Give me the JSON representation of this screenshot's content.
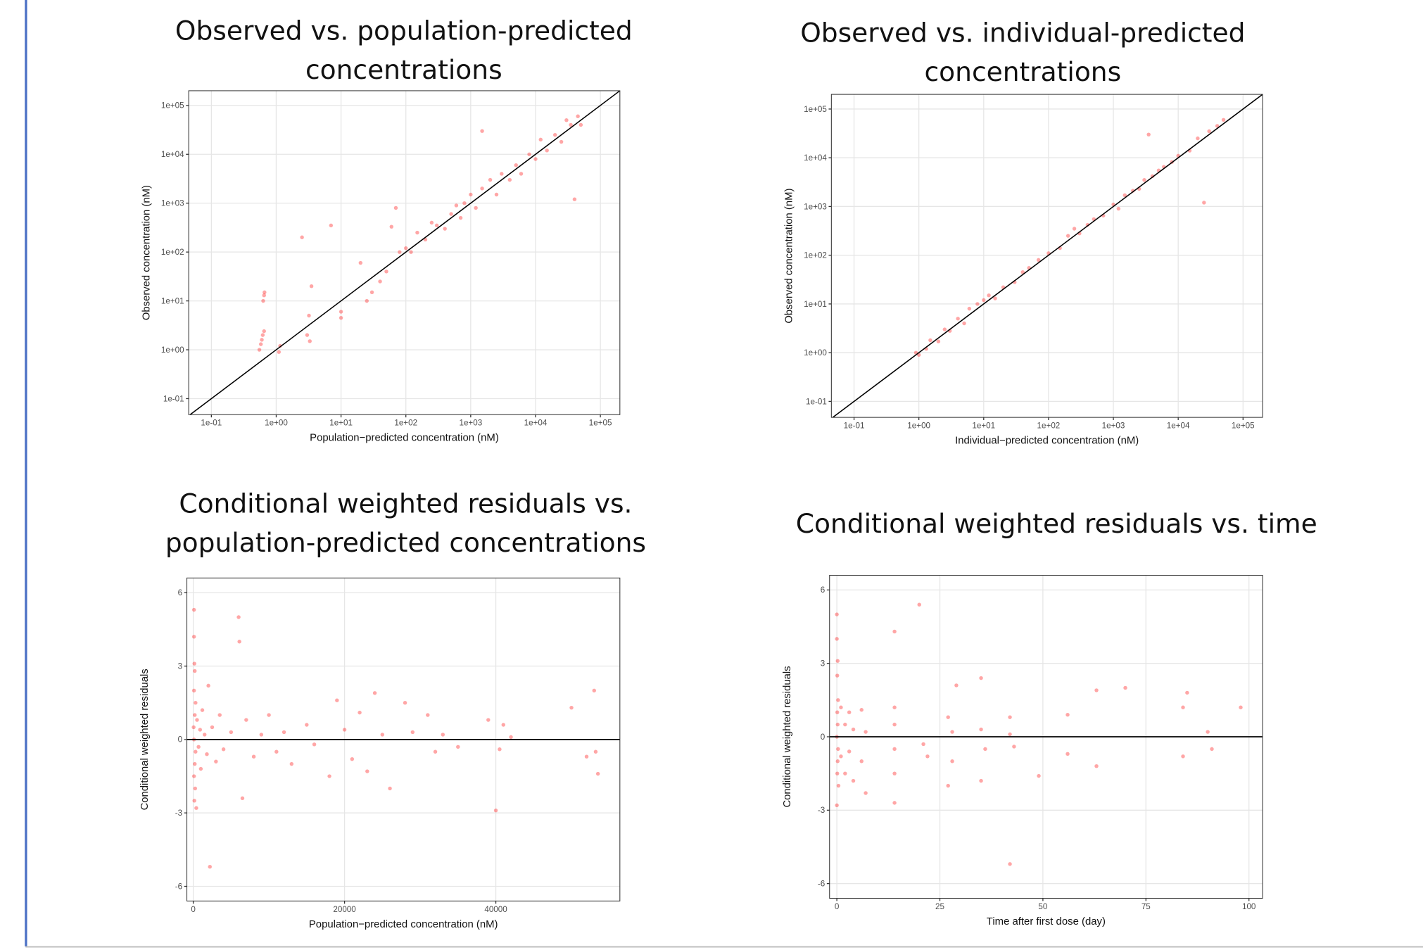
{
  "chart_data": [
    {
      "type": "scatter",
      "title": [
        "Observed vs. population-predicted",
        "concentrations"
      ],
      "x_label": "Population−predicted concentration (nM)",
      "y_label": "Observed concentration (nM)",
      "xscale": "log",
      "yscale": "log",
      "color": "#ff0000",
      "point_alpha": 0.35,
      "grid": true,
      "identity_line": true,
      "xlim": [
        0.0447,
        200000
      ],
      "ylim": [
        0.047,
        200000
      ],
      "xticks": [
        {
          "value": 0.1,
          "label": "1e-01"
        },
        {
          "value": 1,
          "label": "1e+00"
        },
        {
          "value": 10,
          "label": "1e+01"
        },
        {
          "value": 100,
          "label": "1e+02"
        },
        {
          "value": 1000,
          "label": "1e+03"
        },
        {
          "value": 10000,
          "label": "1e+04"
        },
        {
          "value": 100000,
          "label": "1e+05"
        }
      ],
      "yticks": [
        {
          "value": 0.1,
          "label": "1e-01"
        },
        {
          "value": 1,
          "label": "1e+00"
        },
        {
          "value": 10,
          "label": "1e+01"
        },
        {
          "value": 100,
          "label": "1e+02"
        },
        {
          "value": 1000,
          "label": "1e+03"
        },
        {
          "value": 10000,
          "label": "1e+04"
        },
        {
          "value": 100000,
          "label": "1e+05"
        }
      ],
      "x": [
        0.55,
        0.58,
        0.6,
        0.62,
        0.65,
        0.63,
        0.65,
        0.66,
        1.1,
        1.15,
        2.5,
        3,
        3.2,
        3.5,
        3.3,
        7,
        10,
        10,
        20,
        25,
        30,
        40,
        50,
        60,
        70,
        80,
        100,
        120,
        150,
        200,
        250,
        300,
        400,
        500,
        600,
        700,
        800,
        1000,
        1200,
        1500,
        1500,
        2000,
        2500,
        3000,
        4000,
        5000,
        6000,
        8000,
        10000,
        12000,
        15000,
        20000,
        25000,
        30000,
        35000,
        40000,
        45000,
        50000
      ],
      "values": [
        1.0,
        1.3,
        1.6,
        2.0,
        2.4,
        10,
        13,
        15,
        0.9,
        1.2,
        200,
        2,
        5,
        20,
        1.5,
        350,
        4.5,
        6,
        60,
        10,
        15,
        25,
        40,
        330,
        800,
        100,
        120,
        100,
        250,
        180,
        400,
        350,
        300,
        600,
        900,
        500,
        1000,
        1500,
        800,
        30000,
        2000,
        3000,
        1500,
        4000,
        3000,
        6000,
        4000,
        10000,
        8000,
        20000,
        12000,
        25000,
        18000,
        50000,
        40000,
        1200,
        60000,
        40000
      ]
    },
    {
      "type": "scatter",
      "title": [
        "Observed vs. individual-predicted",
        "concentrations"
      ],
      "x_label": "Individual−predicted concentration (nM)",
      "y_label": "Observed concentration (nM)",
      "xscale": "log",
      "yscale": "log",
      "color": "#ff0000",
      "point_alpha": 0.35,
      "grid": true,
      "identity_line": true,
      "xlim": [
        0.0447,
        200000
      ],
      "ylim": [
        0.047,
        200000
      ],
      "xticks": [
        {
          "value": 0.1,
          "label": "1e-01"
        },
        {
          "value": 1,
          "label": "1e+00"
        },
        {
          "value": 10,
          "label": "1e+01"
        },
        {
          "value": 100,
          "label": "1e+02"
        },
        {
          "value": 1000,
          "label": "1e+03"
        },
        {
          "value": 10000,
          "label": "1e+04"
        },
        {
          "value": 100000,
          "label": "1e+05"
        }
      ],
      "yticks": [
        {
          "value": 0.1,
          "label": "1e-01"
        },
        {
          "value": 1,
          "label": "1e+00"
        },
        {
          "value": 10,
          "label": "1e+01"
        },
        {
          "value": 100,
          "label": "1e+02"
        },
        {
          "value": 1000,
          "label": "1e+03"
        },
        {
          "value": 10000,
          "label": "1e+04"
        },
        {
          "value": 100000,
          "label": "1e+05"
        }
      ],
      "x": [
        0.9,
        1.0,
        1.3,
        1.5,
        2,
        2.5,
        3,
        4,
        5,
        6,
        8,
        10,
        12,
        15,
        20,
        30,
        40,
        50,
        70,
        100,
        150,
        200,
        250,
        300,
        400,
        500,
        700,
        1000,
        1200,
        1500,
        2000,
        2500,
        3000,
        3500,
        4000,
        5000,
        6000,
        8000,
        10000,
        15000,
        20000,
        25000,
        30000,
        40000,
        50000
      ],
      "values": [
        1.0,
        0.9,
        1.2,
        1.8,
        1.7,
        3,
        2.8,
        5,
        4,
        8,
        10,
        12,
        15,
        13,
        22,
        28,
        45,
        55,
        80,
        110,
        140,
        250,
        350,
        280,
        420,
        550,
        650,
        1100,
        900,
        1700,
        2100,
        2300,
        3500,
        30000,
        4200,
        5500,
        6500,
        8200,
        11000,
        14000,
        25000,
        1200,
        35000,
        45000,
        60000
      ]
    },
    {
      "type": "scatter",
      "title": [
        "Conditional weighted residuals vs.",
        "population-predicted concentrations"
      ],
      "x_label": "Population−predicted concentration (nM)",
      "y_label": "Conditional weighted residuals",
      "color": "#ff0000",
      "point_alpha": 0.35,
      "grid": true,
      "hline": 0,
      "xlim": [
        -843,
        56400
      ],
      "ylim": [
        -6.6,
        6.6
      ],
      "xticks": [
        0,
        20000,
        40000
      ],
      "yticks": [
        -6,
        -3,
        0,
        3,
        6
      ],
      "x": [
        100,
        100,
        150,
        200,
        100,
        300,
        200,
        50,
        100,
        300,
        200,
        100,
        250,
        150,
        400,
        500,
        700,
        900,
        1000,
        1200,
        1500,
        1800,
        2000,
        2200,
        2500,
        3000,
        3500,
        4000,
        5000,
        6000,
        6100,
        6500,
        7000,
        8000,
        9000,
        10000,
        11000,
        12000,
        13000,
        15000,
        16000,
        18000,
        19000,
        20000,
        21000,
        22000,
        23000,
        24000,
        25000,
        26000,
        28000,
        29000,
        31000,
        32000,
        33000,
        35000,
        39000,
        40000,
        40500,
        41000,
        42000,
        50000,
        52000,
        53000,
        53500,
        53200
      ],
      "values": [
        5.3,
        4.2,
        3.1,
        2.8,
        2.0,
        1.5,
        1.0,
        0.5,
        0,
        -0.5,
        -1.0,
        -1.5,
        -2.0,
        -2.5,
        -2.8,
        0.8,
        -0.3,
        0.4,
        -1.2,
        1.2,
        0.2,
        -0.6,
        2.2,
        -5.2,
        0.5,
        -0.9,
        1.0,
        -0.4,
        0.3,
        5.0,
        4.0,
        -2.4,
        0.8,
        -0.7,
        0.2,
        1.0,
        -0.5,
        0.3,
        -1.0,
        0.6,
        -0.2,
        -1.5,
        1.6,
        0.4,
        -0.8,
        1.1,
        -1.3,
        1.9,
        0.2,
        -2.0,
        1.5,
        0.3,
        1.0,
        -0.5,
        0.2,
        -0.3,
        0.8,
        -2.9,
        -0.4,
        0.6,
        0.1,
        1.3,
        -0.7,
        2.0,
        -1.4,
        -0.5
      ]
    },
    {
      "type": "scatter",
      "title": [
        "Conditional weighted residuals vs. time"
      ],
      "x_label": "Time after first dose (day)",
      "y_label": "Conditional weighted residuals",
      "color": "#ff0000",
      "point_alpha": 0.35,
      "grid": true,
      "hline": 0,
      "xlim": [
        -1.77,
        103.3
      ],
      "ylim": [
        -6.6,
        6.6
      ],
      "xticks": [
        0,
        25,
        50,
        75,
        100
      ],
      "yticks": [
        -6,
        -3,
        0,
        3,
        6
      ],
      "x": [
        0,
        0,
        0.2,
        0.1,
        0.3,
        0.1,
        0.2,
        0,
        0.3,
        0.2,
        0.1,
        0.4,
        0,
        1,
        1,
        2,
        2,
        3,
        3,
        4,
        4,
        6,
        6,
        7,
        7,
        14,
        14,
        14,
        14,
        14,
        14,
        20,
        21,
        22,
        27,
        27,
        28,
        29,
        28,
        35,
        35,
        35,
        36,
        42,
        42,
        42,
        43,
        49,
        56,
        56,
        63,
        63,
        70,
        84,
        84,
        85,
        90,
        91,
        98
      ],
      "values": [
        5.0,
        4.0,
        3.1,
        2.5,
        1.5,
        1.0,
        0.5,
        0,
        -0.5,
        -1.0,
        -1.5,
        -2.0,
        -2.8,
        1.2,
        -0.8,
        0.5,
        -1.5,
        1.0,
        -0.6,
        0.3,
        -1.8,
        1.1,
        -1.0,
        -2.3,
        0.2,
        4.3,
        1.2,
        0.5,
        -0.5,
        -1.5,
        -2.7,
        5.4,
        -0.3,
        -0.8,
        0.8,
        -2.0,
        0.2,
        2.1,
        -1.0,
        2.4,
        -1.8,
        0.3,
        -0.5,
        0.8,
        -5.2,
        0.1,
        -0.4,
        -1.6,
        0.9,
        -0.7,
        1.9,
        -1.2,
        2.0,
        1.2,
        -0.8,
        1.8,
        0.2,
        -0.5,
        1.2
      ]
    }
  ]
}
